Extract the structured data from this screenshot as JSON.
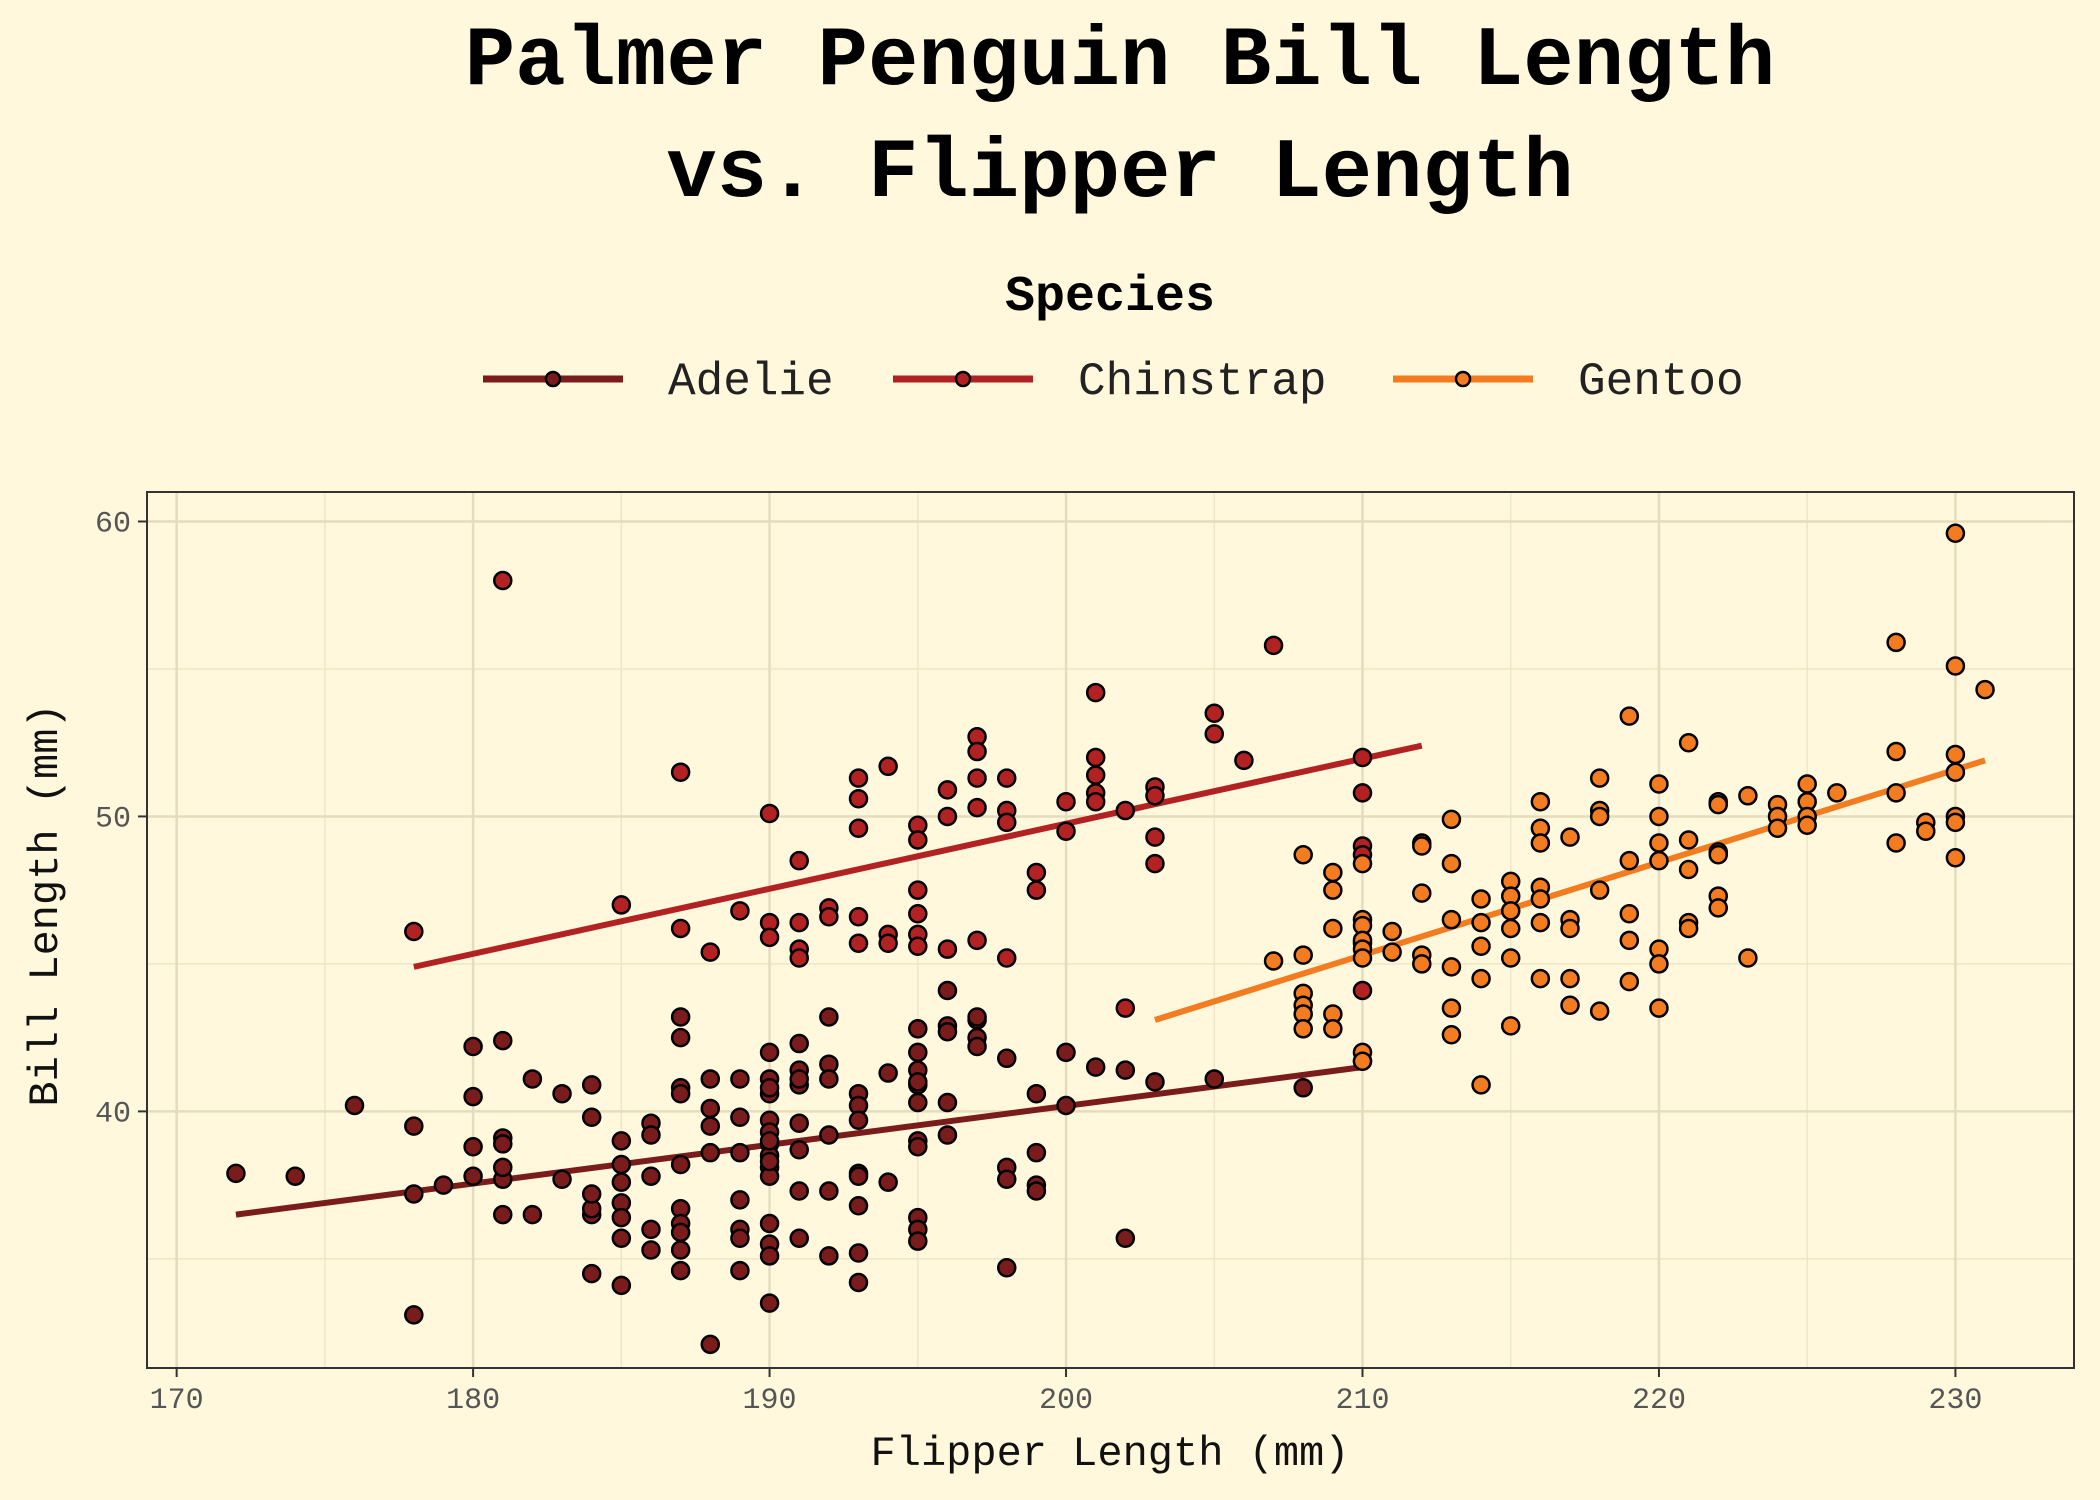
{
  "chart_data": {
    "type": "scatter",
    "title_lines": [
      "Palmer Penguin Bill Length",
      "vs. Flipper Length"
    ],
    "xlabel": "Flipper Length (mm)",
    "ylabel": "Bill Length (mm)",
    "xlim": [
      169,
      234
    ],
    "ylim": [
      31.3,
      61
    ],
    "xticks": [
      "170",
      "180",
      "190",
      "200",
      "210",
      "220",
      "230"
    ],
    "yticks": [
      "40",
      "50",
      "60"
    ],
    "grid": true,
    "legend": {
      "title": "Species",
      "placement": "top"
    },
    "series": [
      {
        "name": "Adelie",
        "color": "#7a1c1c",
        "trend": [
          [
            172,
            36.5
          ],
          [
            210,
            41.5
          ]
        ],
        "points": [
          [
            172,
            37.9
          ],
          [
            174,
            37.8
          ],
          [
            176,
            40.2
          ],
          [
            178,
            39.5
          ],
          [
            178,
            37.2
          ],
          [
            178,
            33.1
          ],
          [
            179,
            37.5
          ],
          [
            180,
            42.2
          ],
          [
            180,
            40.5
          ],
          [
            180,
            38.8
          ],
          [
            180,
            37.8
          ],
          [
            181,
            39.1
          ],
          [
            181,
            38.9
          ],
          [
            181,
            37.7
          ],
          [
            181,
            36.5
          ],
          [
            181,
            38.1
          ],
          [
            181,
            42.4
          ],
          [
            182,
            41.1
          ],
          [
            182,
            36.5
          ],
          [
            183,
            40.6
          ],
          [
            183,
            37.7
          ],
          [
            184,
            40.9
          ],
          [
            184,
            39.8
          ],
          [
            184,
            36.5
          ],
          [
            184,
            36.7
          ],
          [
            184,
            37.2
          ],
          [
            184,
            34.5
          ],
          [
            185,
            39.0
          ],
          [
            185,
            38.2
          ],
          [
            185,
            37.6
          ],
          [
            185,
            36.9
          ],
          [
            185,
            36.4
          ],
          [
            185,
            35.7
          ],
          [
            185,
            34.1
          ],
          [
            186,
            39.6
          ],
          [
            186,
            39.2
          ],
          [
            186,
            37.8
          ],
          [
            186,
            36.0
          ],
          [
            186,
            35.3
          ],
          [
            187,
            40.8
          ],
          [
            187,
            40.6
          ],
          [
            187,
            38.2
          ],
          [
            187,
            36.7
          ],
          [
            187,
            36.2
          ],
          [
            187,
            35.9
          ],
          [
            187,
            35.3
          ],
          [
            187,
            34.6
          ],
          [
            187,
            43.2
          ],
          [
            187,
            42.5
          ],
          [
            188,
            41.1
          ],
          [
            188,
            40.1
          ],
          [
            188,
            39.5
          ],
          [
            188,
            38.6
          ],
          [
            188,
            32.1
          ],
          [
            189,
            41.1
          ],
          [
            189,
            39.8
          ],
          [
            189,
            38.6
          ],
          [
            189,
            37.0
          ],
          [
            189,
            36.0
          ],
          [
            189,
            35.7
          ],
          [
            189,
            34.6
          ],
          [
            190,
            42.0
          ],
          [
            190,
            41.1
          ],
          [
            190,
            40.6
          ],
          [
            190,
            39.7
          ],
          [
            190,
            39.3
          ],
          [
            190,
            38.9
          ],
          [
            190,
            38.5
          ],
          [
            190,
            38.1
          ],
          [
            190,
            37.8
          ],
          [
            190,
            36.2
          ],
          [
            190,
            35.5
          ],
          [
            190,
            35.1
          ],
          [
            190,
            33.5
          ],
          [
            190,
            40.8
          ],
          [
            190,
            39.0
          ],
          [
            190,
            38.3
          ],
          [
            191,
            42.3
          ],
          [
            191,
            41.4
          ],
          [
            191,
            40.9
          ],
          [
            191,
            39.6
          ],
          [
            191,
            38.7
          ],
          [
            191,
            37.3
          ],
          [
            191,
            35.7
          ],
          [
            191,
            41.1
          ],
          [
            192,
            43.2
          ],
          [
            192,
            41.6
          ],
          [
            192,
            41.1
          ],
          [
            192,
            39.2
          ],
          [
            192,
            37.3
          ],
          [
            192,
            35.1
          ],
          [
            193,
            40.6
          ],
          [
            193,
            40.2
          ],
          [
            193,
            39.7
          ],
          [
            193,
            37.9
          ],
          [
            193,
            36.8
          ],
          [
            193,
            35.2
          ],
          [
            193,
            34.2
          ],
          [
            193,
            37.8
          ],
          [
            194,
            41.3
          ],
          [
            194,
            37.6
          ],
          [
            195,
            42.8
          ],
          [
            195,
            42.0
          ],
          [
            195,
            41.4
          ],
          [
            195,
            40.9
          ],
          [
            195,
            40.3
          ],
          [
            195,
            39.0
          ],
          [
            195,
            38.8
          ],
          [
            195,
            36.4
          ],
          [
            195,
            36.0
          ],
          [
            195,
            35.6
          ],
          [
            195,
            41.0
          ],
          [
            196,
            44.1
          ],
          [
            196,
            42.9
          ],
          [
            196,
            42.7
          ],
          [
            196,
            40.3
          ],
          [
            196,
            39.2
          ],
          [
            197,
            43.1
          ],
          [
            197,
            42.5
          ],
          [
            197,
            42.2
          ],
          [
            197,
            43.2
          ],
          [
            198,
            41.8
          ],
          [
            198,
            38.1
          ],
          [
            198,
            37.7
          ],
          [
            198,
            34.7
          ],
          [
            199,
            40.6
          ],
          [
            199,
            38.6
          ],
          [
            199,
            37.5
          ],
          [
            199,
            37.3
          ],
          [
            200,
            42.0
          ],
          [
            200,
            40.2
          ],
          [
            201,
            41.5
          ],
          [
            202,
            41.4
          ],
          [
            202,
            35.7
          ],
          [
            203,
            41.0
          ],
          [
            205,
            41.1
          ],
          [
            208,
            40.8
          ],
          [
            210,
            41.7
          ]
        ]
      },
      {
        "name": "Chinstrap",
        "color": "#b22222",
        "trend": [
          [
            178,
            44.9
          ],
          [
            212,
            52.4
          ]
        ],
        "points": [
          [
            178,
            46.1
          ],
          [
            181,
            58.0
          ],
          [
            185,
            47.0
          ],
          [
            187,
            51.5
          ],
          [
            187,
            46.2
          ],
          [
            188,
            45.4
          ],
          [
            189,
            46.8
          ],
          [
            190,
            50.1
          ],
          [
            190,
            46.4
          ],
          [
            190,
            45.9
          ],
          [
            191,
            48.5
          ],
          [
            191,
            46.4
          ],
          [
            191,
            45.5
          ],
          [
            191,
            45.2
          ],
          [
            192,
            46.9
          ],
          [
            192,
            46.6
          ],
          [
            193,
            51.3
          ],
          [
            193,
            50.6
          ],
          [
            193,
            49.6
          ],
          [
            193,
            46.6
          ],
          [
            193,
            45.7
          ],
          [
            194,
            51.7
          ],
          [
            194,
            46.0
          ],
          [
            194,
            45.7
          ],
          [
            195,
            49.7
          ],
          [
            195,
            49.2
          ],
          [
            195,
            47.5
          ],
          [
            195,
            46.7
          ],
          [
            195,
            46.0
          ],
          [
            195,
            45.6
          ],
          [
            196,
            50.9
          ],
          [
            196,
            50.0
          ],
          [
            196,
            45.5
          ],
          [
            197,
            52.7
          ],
          [
            197,
            52.2
          ],
          [
            197,
            51.3
          ],
          [
            197,
            50.3
          ],
          [
            197,
            45.8
          ],
          [
            198,
            51.3
          ],
          [
            198,
            50.2
          ],
          [
            198,
            49.8
          ],
          [
            198,
            45.2
          ],
          [
            199,
            48.1
          ],
          [
            199,
            47.5
          ],
          [
            200,
            50.5
          ],
          [
            200,
            49.5
          ],
          [
            201,
            54.2
          ],
          [
            201,
            52.0
          ],
          [
            201,
            51.4
          ],
          [
            201,
            50.8
          ],
          [
            201,
            50.5
          ],
          [
            202,
            50.2
          ],
          [
            202,
            43.5
          ],
          [
            203,
            51.0
          ],
          [
            203,
            50.7
          ],
          [
            203,
            49.3
          ],
          [
            203,
            48.4
          ],
          [
            205,
            53.5
          ],
          [
            205,
            52.8
          ],
          [
            206,
            51.9
          ],
          [
            207,
            55.8
          ],
          [
            210,
            52.0
          ],
          [
            210,
            50.8
          ],
          [
            210,
            49.0
          ],
          [
            210,
            48.7
          ],
          [
            210,
            45.7
          ],
          [
            210,
            44.1
          ],
          [
            212,
            49.1
          ]
        ]
      },
      {
        "name": "Gentoo",
        "color": "#f47c20",
        "trend": [
          [
            203,
            43.1
          ],
          [
            231,
            51.9
          ]
        ],
        "points": [
          [
            207,
            45.1
          ],
          [
            208,
            48.7
          ],
          [
            208,
            45.3
          ],
          [
            208,
            44.0
          ],
          [
            208,
            43.6
          ],
          [
            208,
            43.3
          ],
          [
            208,
            42.8
          ],
          [
            209,
            48.1
          ],
          [
            209,
            47.5
          ],
          [
            209,
            46.2
          ],
          [
            209,
            43.3
          ],
          [
            209,
            42.8
          ],
          [
            210,
            48.4
          ],
          [
            210,
            46.5
          ],
          [
            210,
            46.3
          ],
          [
            210,
            45.8
          ],
          [
            210,
            45.5
          ],
          [
            210,
            45.2
          ],
          [
            210,
            42.0
          ],
          [
            210,
            41.7
          ],
          [
            211,
            46.1
          ],
          [
            211,
            45.4
          ],
          [
            212,
            49.0
          ],
          [
            212,
            47.4
          ],
          [
            212,
            45.3
          ],
          [
            212,
            45.0
          ],
          [
            213,
            49.9
          ],
          [
            213,
            48.4
          ],
          [
            213,
            46.5
          ],
          [
            213,
            44.9
          ],
          [
            213,
            43.5
          ],
          [
            213,
            42.6
          ],
          [
            214,
            47.2
          ],
          [
            214,
            46.4
          ],
          [
            214,
            45.6
          ],
          [
            214,
            44.5
          ],
          [
            214,
            40.9
          ],
          [
            215,
            47.8
          ],
          [
            215,
            47.3
          ],
          [
            215,
            46.8
          ],
          [
            215,
            46.2
          ],
          [
            215,
            45.2
          ],
          [
            215,
            42.9
          ],
          [
            216,
            50.5
          ],
          [
            216,
            49.6
          ],
          [
            216,
            49.1
          ],
          [
            216,
            47.6
          ],
          [
            216,
            47.2
          ],
          [
            216,
            46.4
          ],
          [
            216,
            44.5
          ],
          [
            217,
            49.3
          ],
          [
            217,
            46.5
          ],
          [
            217,
            46.2
          ],
          [
            217,
            44.5
          ],
          [
            217,
            43.6
          ],
          [
            218,
            51.3
          ],
          [
            218,
            50.2
          ],
          [
            218,
            50.0
          ],
          [
            218,
            47.5
          ],
          [
            218,
            43.4
          ],
          [
            219,
            53.4
          ],
          [
            219,
            48.5
          ],
          [
            219,
            46.7
          ],
          [
            219,
            45.8
          ],
          [
            219,
            44.4
          ],
          [
            220,
            51.1
          ],
          [
            220,
            50.0
          ],
          [
            220,
            49.1
          ],
          [
            220,
            48.5
          ],
          [
            220,
            45.5
          ],
          [
            220,
            45.0
          ],
          [
            220,
            43.5
          ],
          [
            221,
            52.5
          ],
          [
            221,
            49.2
          ],
          [
            221,
            48.2
          ],
          [
            221,
            46.4
          ],
          [
            221,
            46.2
          ],
          [
            222,
            50.5
          ],
          [
            222,
            50.4
          ],
          [
            222,
            48.8
          ],
          [
            222,
            48.7
          ],
          [
            222,
            47.3
          ],
          [
            222,
            46.9
          ],
          [
            223,
            50.7
          ],
          [
            223,
            45.2
          ],
          [
            224,
            50.4
          ],
          [
            224,
            50.0
          ],
          [
            224,
            49.6
          ],
          [
            225,
            51.1
          ],
          [
            225,
            50.5
          ],
          [
            225,
            50.0
          ],
          [
            225,
            49.7
          ],
          [
            226,
            50.8
          ],
          [
            228,
            55.9
          ],
          [
            228,
            52.2
          ],
          [
            228,
            50.8
          ],
          [
            228,
            49.1
          ],
          [
            229,
            49.8
          ],
          [
            229,
            49.5
          ],
          [
            230,
            59.6
          ],
          [
            230,
            55.1
          ],
          [
            230,
            52.1
          ],
          [
            230,
            51.5
          ],
          [
            230,
            50.0
          ],
          [
            230,
            49.8
          ],
          [
            230,
            48.6
          ],
          [
            231,
            54.3
          ]
        ]
      }
    ]
  }
}
